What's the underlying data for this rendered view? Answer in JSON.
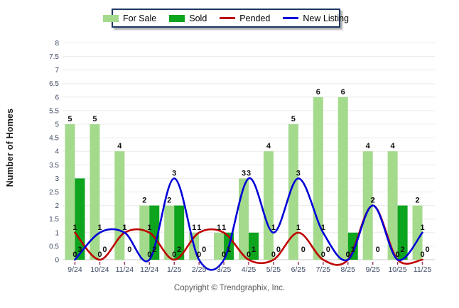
{
  "y_axis_title": "Number of Homes",
  "footer_text": "Copyright © Trendgraphix, Inc.",
  "chart_data": {
    "type": "bar+line",
    "title": "",
    "xlabel": "",
    "ylabel": "Number of Homes",
    "ylim": [
      0,
      8
    ],
    "ytick_step": 0.5,
    "grid": true,
    "legend_position": "top-center",
    "categories": [
      "9/24",
      "10/24",
      "11/24",
      "12/24",
      "1/25",
      "2/25",
      "3/25",
      "4/25",
      "5/25",
      "6/25",
      "7/25",
      "8/25",
      "9/25",
      "10/25",
      "11/25"
    ],
    "series": [
      {
        "name": "For Sale",
        "type": "bar",
        "color": "#a4da8c",
        "values": [
          5,
          5,
          4,
          2,
          2,
          1,
          1,
          3,
          4,
          5,
          6,
          6,
          4,
          4,
          2
        ]
      },
      {
        "name": "Sold",
        "type": "bar",
        "color": "#0da41e",
        "values": [
          3,
          0,
          0,
          2,
          2,
          0,
          1,
          1,
          0,
          0,
          0,
          1,
          0,
          2,
          0
        ]
      },
      {
        "name": "Pended",
        "type": "line",
        "color": "#bf0000",
        "values": [
          1,
          0,
          1,
          1,
          0,
          1,
          1,
          0,
          0,
          1,
          0,
          0,
          2,
          0,
          0
        ]
      },
      {
        "name": "New Listing",
        "type": "line",
        "color": "#0000d8",
        "values": [
          0,
          1,
          1,
          0,
          3,
          0,
          0,
          3,
          1,
          3,
          1,
          0,
          2,
          0,
          1
        ]
      }
    ],
    "gridline_color": "#ececec",
    "axis_line_color": "#cccccc",
    "tick_mark_color": "#9b3a5e",
    "label_color": "#111111",
    "tick_label_color": "#3f4a63"
  }
}
